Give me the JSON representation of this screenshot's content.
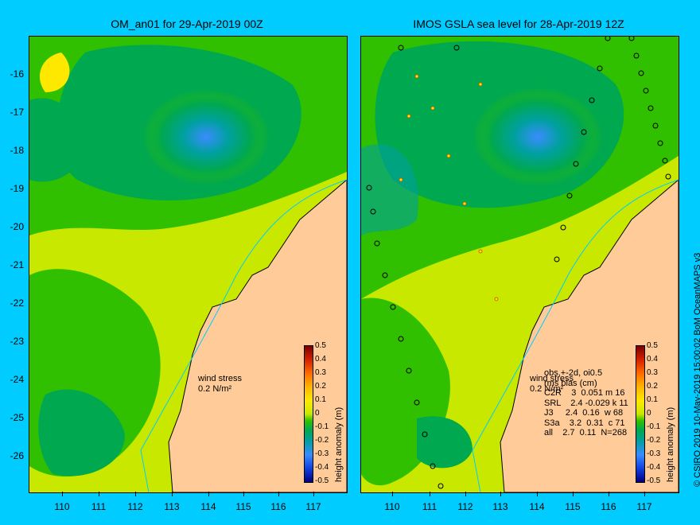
{
  "left_panel": {
    "title": "OM_an01 for 29-Apr-2019 00Z",
    "wind_label_line1": "wind stress",
    "wind_label_line2": "0.2 N/m²"
  },
  "right_panel": {
    "title": "IMOS GSLA sea level  for 28-Apr-2019 12Z",
    "wind_label_line1": "wind stress",
    "wind_label_line2": "0.2 N/m²",
    "stats_header": "obs,+-2d, oi0.5",
    "stats_subheader": "rms bias (cm)",
    "stats_rows": [
      "C2R    3  0.051 m 16",
      "SRL    2.4 -0.029 k 11",
      "J3     2.4  0.16  w 68",
      "S3a    3.2  0.31  c 71",
      "all    2.7  0.11  N=268"
    ]
  },
  "axes": {
    "x_ticks": [
      "110",
      "111",
      "112",
      "113",
      "114",
      "115",
      "116",
      "117"
    ],
    "y_ticks": [
      "-16",
      "-17",
      "-18",
      "-19",
      "-20",
      "-21",
      "-22",
      "-23",
      "-24",
      "-25",
      "-26"
    ]
  },
  "colorbar": {
    "title": "height anomaly (m)",
    "ticks": [
      "0.5",
      "0.4",
      "0.3",
      "0.2",
      "0.1",
      "0",
      "-0.1",
      "-0.2",
      "-0.3",
      "-0.4",
      "-0.5"
    ]
  },
  "copyright": "© CSIRO 2019   10-May-2019 15:00:02 BoM OceanMAPS v3",
  "colors": {
    "background": "#00ccff",
    "land": "#ffcc99",
    "anomaly_high": "#c8e800",
    "anomaly_mid": "#30c000",
    "anomaly_low": "#00a0a0"
  }
}
